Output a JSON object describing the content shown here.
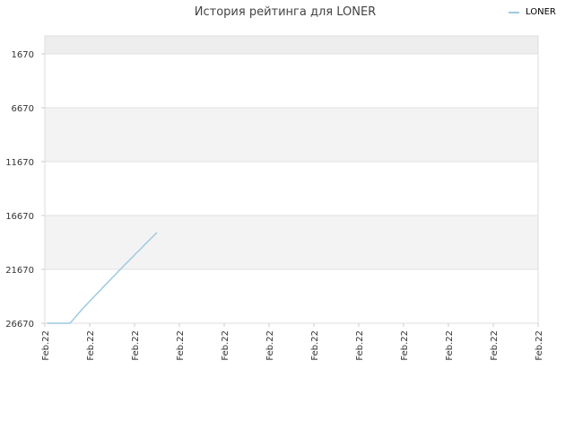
{
  "chart_data": {
    "type": "line",
    "title": "История рейтинга для LONER",
    "xlabel": "",
    "ylabel": "",
    "y_inverted": true,
    "ylim": [
      0,
      26670
    ],
    "y_ticks": [
      1670,
      6670,
      11670,
      16670,
      21670,
      26670
    ],
    "x_tick_labels": [
      "Feb.22",
      "Feb.22",
      "Feb.22",
      "Feb.22",
      "Feb.22",
      "Feb.22",
      "Feb.22",
      "Feb.22",
      "Feb.22",
      "Feb.22",
      "Feb.22",
      "Feb.22"
    ],
    "legend_position": "top-right",
    "grid": true,
    "band_colors": [
      "#f3f3f3",
      "#ffffff"
    ],
    "series": [
      {
        "name": "LONER",
        "color": "#9ecae1",
        "x": [
          0.05,
          0.1,
          0.15,
          0.2,
          0.25,
          0.3,
          0.35,
          0.4,
          0.45,
          0.5,
          0.55,
          0.6,
          0.65,
          0.7,
          0.75,
          0.8,
          0.85,
          0.9,
          0.95,
          1.0,
          1.05,
          1.1,
          1.15,
          1.2,
          1.25,
          1.3,
          1.35,
          1.4,
          1.45,
          1.5,
          1.55,
          1.6,
          1.65,
          1.7,
          1.75,
          1.8,
          1.85,
          1.9,
          1.95,
          2.0,
          2.05,
          2.1,
          2.15,
          2.2,
          2.25,
          2.3,
          2.35,
          2.4,
          2.45,
          2.5
        ],
        "values": [
          26670,
          26670,
          26670,
          26670,
          26670,
          26670,
          26670,
          26670,
          26670,
          26670,
          26670,
          26500,
          26240,
          26010,
          25760,
          25520,
          25290,
          25070,
          24850,
          24630,
          24400,
          24180,
          23980,
          23760,
          23550,
          23320,
          23100,
          22900,
          22670,
          22450,
          22250,
          22020,
          21800,
          21600,
          21380,
          21170,
          20970,
          20750,
          20550,
          20330,
          20120,
          19920,
          19710,
          19490,
          19280,
          19080,
          18870,
          18670,
          18450,
          18260
        ]
      }
    ]
  }
}
